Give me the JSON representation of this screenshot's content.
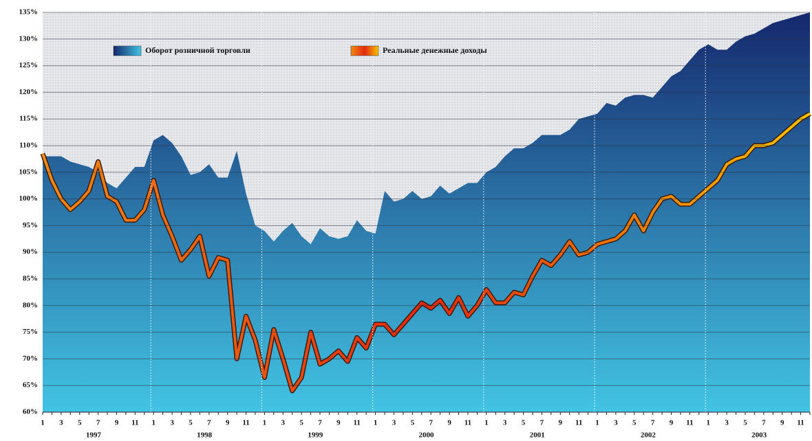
{
  "chart_data": {
    "type": "area_line",
    "categories": [
      "1",
      null,
      "3",
      null,
      "5",
      null,
      "7",
      null,
      "9",
      null,
      "11",
      null,
      "1",
      null,
      "3",
      null,
      "5",
      null,
      "7",
      null,
      "9",
      null,
      "11",
      null,
      "1",
      null,
      "3",
      null,
      "5",
      null,
      "7",
      null,
      "9",
      null,
      "11",
      null,
      "1",
      null,
      "3",
      null,
      "5",
      null,
      "7",
      null,
      "9",
      null,
      "11",
      null,
      "1",
      null,
      "3",
      null,
      "5",
      null,
      "7",
      null,
      "9",
      null,
      "11",
      null,
      "1",
      null,
      "3",
      null,
      "5",
      null,
      "7",
      null,
      "9",
      null,
      "11",
      null,
      "1",
      null,
      "3",
      null,
      "5",
      null,
      "7",
      null,
      "9",
      null,
      "11",
      null
    ],
    "year_labels": [
      "1997",
      "1998",
      "1999",
      "2000",
      "2001",
      "2002",
      "2003"
    ],
    "ylim": [
      60,
      135
    ],
    "yticks": [
      {
        "value": 60,
        "label": "60%"
      },
      {
        "value": 65,
        "label": "65%"
      },
      {
        "value": 70,
        "label": "70%"
      },
      {
        "value": 75,
        "label": "75%"
      },
      {
        "value": 80,
        "label": "80%"
      },
      {
        "value": 85,
        "label": "85%"
      },
      {
        "value": 90,
        "label": "90%"
      },
      {
        "value": 95,
        "label": "95%"
      },
      {
        "value": 100,
        "label": "100%"
      },
      {
        "value": 105,
        "label": "105%"
      },
      {
        "value": 110,
        "label": "110%"
      },
      {
        "value": 115,
        "label": "115%"
      },
      {
        "value": 120,
        "label": "120%"
      },
      {
        "value": 125,
        "label": "125%"
      },
      {
        "value": 130,
        "label": "130%"
      },
      {
        "value": 135,
        "label": "135%"
      }
    ],
    "grid": true,
    "legend": "top",
    "series": [
      {
        "name": "Оборот розничной торговли",
        "kind": "area",
        "color": [
          "#15286d",
          "#42c4e4"
        ],
        "values": [
          108,
          108,
          108,
          107,
          106.5,
          106,
          105,
          103,
          102,
          104,
          106,
          106,
          111,
          112,
          110.5,
          108,
          104.5,
          105,
          106.5,
          104,
          104,
          109,
          101,
          95,
          94,
          92,
          94,
          95.5,
          93,
          91.5,
          94.5,
          93,
          92.5,
          93,
          96,
          94,
          93.5,
          101.5,
          99.5,
          100,
          101.5,
          100,
          100.5,
          102.5,
          101,
          102,
          103,
          103,
          105,
          106,
          108,
          109.5,
          109.5,
          110.5,
          112,
          112,
          112,
          113,
          115,
          115.5,
          116,
          118,
          117.5,
          119,
          119.5,
          119.5,
          119,
          121,
          123,
          124,
          126,
          128,
          129,
          128,
          128,
          129.5,
          130.5,
          131,
          132,
          133,
          133.5,
          134,
          134.5,
          135
        ]
      },
      {
        "name": "Реальные денежные доходы",
        "kind": "line",
        "color": [
          "#f08a10",
          "#e42810",
          "#f6c400"
        ],
        "values": [
          108.5,
          103.5,
          100,
          98,
          99.5,
          101.5,
          107,
          100.5,
          99.5,
          96,
          96,
          98,
          103.5,
          97,
          93,
          88.5,
          90.5,
          93,
          85.5,
          89,
          88.5,
          70,
          78,
          73.5,
          66.5,
          75.5,
          70,
          64,
          66.5,
          75,
          69,
          70,
          71.5,
          69.5,
          74,
          72,
          76.5,
          76.5,
          74.5,
          76.5,
          78.5,
          80.5,
          79.5,
          81,
          78.5,
          81.5,
          78,
          80,
          83,
          80.5,
          80.5,
          82.5,
          82,
          85.5,
          88.5,
          87.5,
          89.5,
          92,
          89.5,
          90,
          91.5,
          92,
          92.5,
          94,
          97,
          94,
          97.5,
          100,
          100.5,
          99,
          99,
          100.5,
          102,
          103.5,
          106.5,
          107.5,
          108,
          110,
          110,
          110.5,
          112,
          113.5,
          115,
          116
        ]
      }
    ]
  }
}
